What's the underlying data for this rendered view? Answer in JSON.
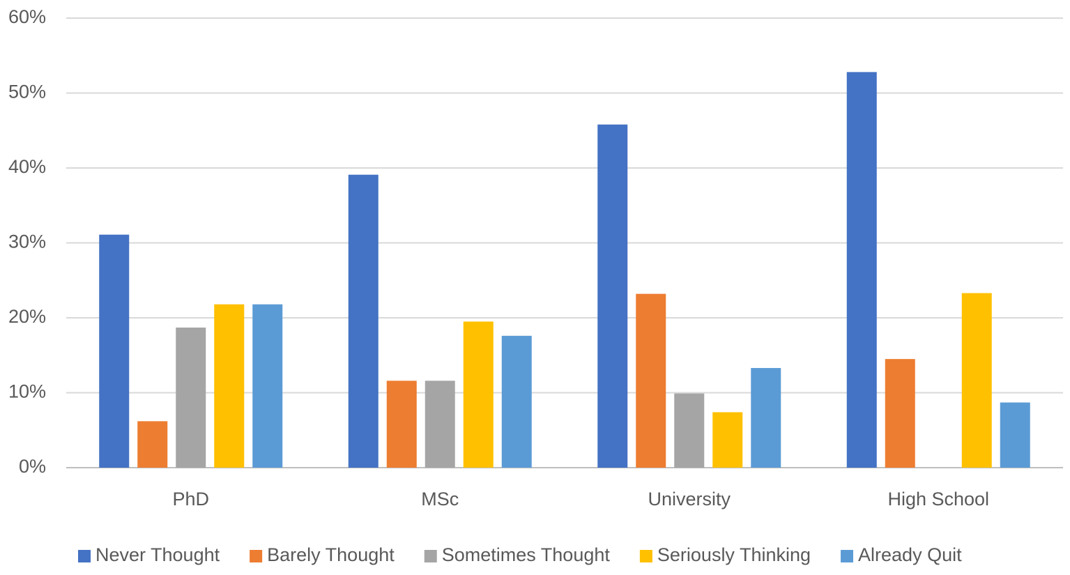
{
  "chart_data": {
    "type": "bar",
    "categories": [
      "PhD",
      "MSc",
      "University",
      "High School"
    ],
    "series": [
      {
        "name": "Never Thought",
        "color": "#4472c4",
        "values": [
          31.1,
          39.1,
          45.8,
          52.8
        ]
      },
      {
        "name": "Barely Thought",
        "color": "#ed7d31",
        "values": [
          6.2,
          11.6,
          23.2,
          14.5
        ]
      },
      {
        "name": "Sometimes Thought",
        "color": "#a5a5a5",
        "values": [
          18.7,
          11.6,
          9.9,
          0
        ]
      },
      {
        "name": "Seriously Thinking",
        "color": "#ffc000",
        "values": [
          21.8,
          19.5,
          7.4,
          23.3
        ]
      },
      {
        "name": "Already Quit",
        "color": "#5b9bd5",
        "values": [
          21.8,
          17.6,
          13.3,
          8.7
        ]
      }
    ],
    "ylim": [
      0,
      60
    ],
    "yticks": [
      {
        "value": 0,
        "label": "0%"
      },
      {
        "value": 10,
        "label": "10%"
      },
      {
        "value": 20,
        "label": "20%"
      },
      {
        "value": 30,
        "label": "30%"
      },
      {
        "value": 40,
        "label": "40%"
      },
      {
        "value": 50,
        "label": "50%"
      },
      {
        "value": 60,
        "label": "60%"
      }
    ],
    "grid": true,
    "legend": "bottom"
  }
}
